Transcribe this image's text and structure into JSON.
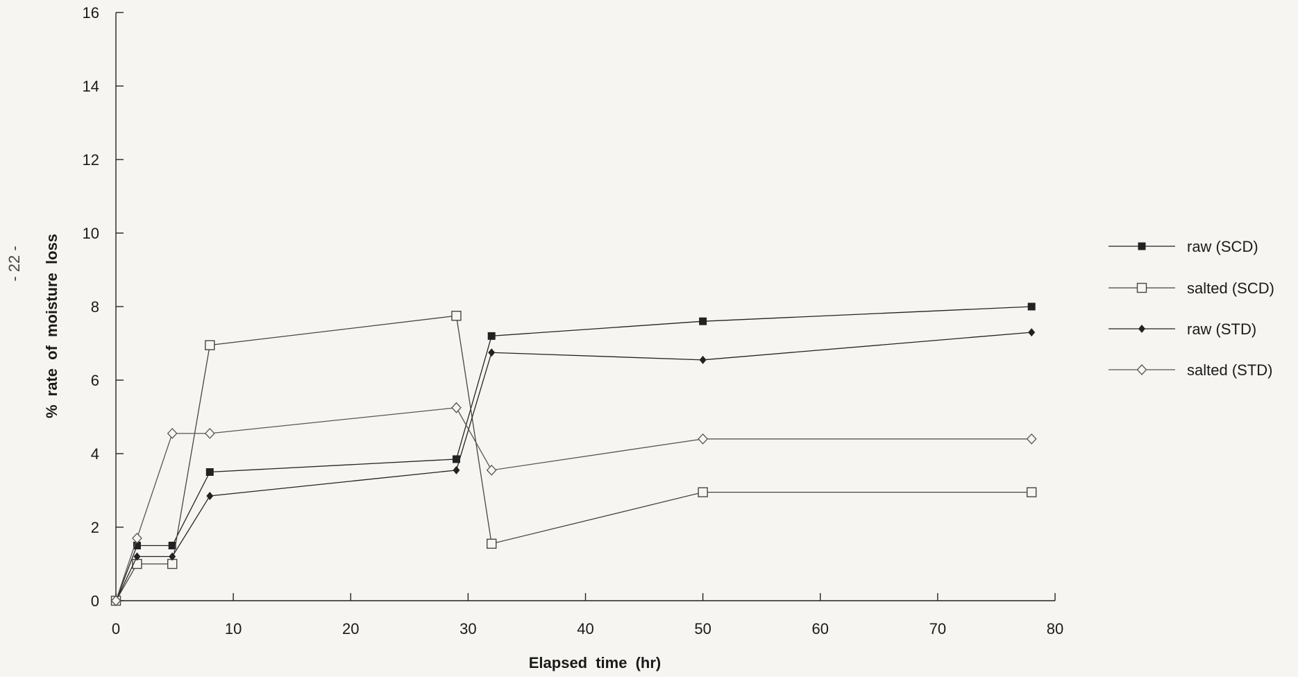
{
  "page_note": "- 22 -",
  "chart_data": {
    "type": "line",
    "title": "",
    "xlabel": "Elapsed time (hr)",
    "ylabel": "% rate of moisture loss",
    "xlim": [
      0,
      80
    ],
    "ylim": [
      0,
      16
    ],
    "xticks": [
      0,
      10,
      20,
      30,
      40,
      50,
      60,
      70,
      80
    ],
    "yticks": [
      0,
      2,
      4,
      6,
      8,
      10,
      12,
      14,
      16
    ],
    "grid": false,
    "legend_position": "right",
    "series": [
      {
        "name": "raw (SCD)",
        "marker": "filled-square",
        "color": "#222222",
        "x": [
          0,
          1.8,
          4.8,
          8,
          29,
          32,
          50,
          78
        ],
        "y": [
          0,
          1.5,
          1.5,
          3.5,
          3.85,
          7.2,
          7.6,
          8.0
        ]
      },
      {
        "name": "salted (SCD)",
        "marker": "open-square",
        "color": "#444444",
        "x": [
          0,
          1.8,
          4.8,
          8,
          29,
          32,
          50,
          78
        ],
        "y": [
          0,
          1.0,
          1.0,
          6.95,
          7.75,
          1.55,
          2.95,
          2.95
        ]
      },
      {
        "name": "raw (STD)",
        "marker": "filled-diamond",
        "color": "#222222",
        "x": [
          0,
          1.8,
          4.8,
          8,
          29,
          32,
          50,
          78
        ],
        "y": [
          0,
          1.2,
          1.2,
          2.85,
          3.55,
          6.75,
          6.55,
          7.3
        ]
      },
      {
        "name": "salted (STD)",
        "marker": "open-diamond",
        "color": "#555555",
        "x": [
          0,
          1.8,
          4.8,
          8,
          29,
          32,
          50,
          78
        ],
        "y": [
          0,
          1.7,
          4.55,
          4.55,
          5.25,
          3.55,
          4.4,
          4.4
        ]
      }
    ]
  }
}
